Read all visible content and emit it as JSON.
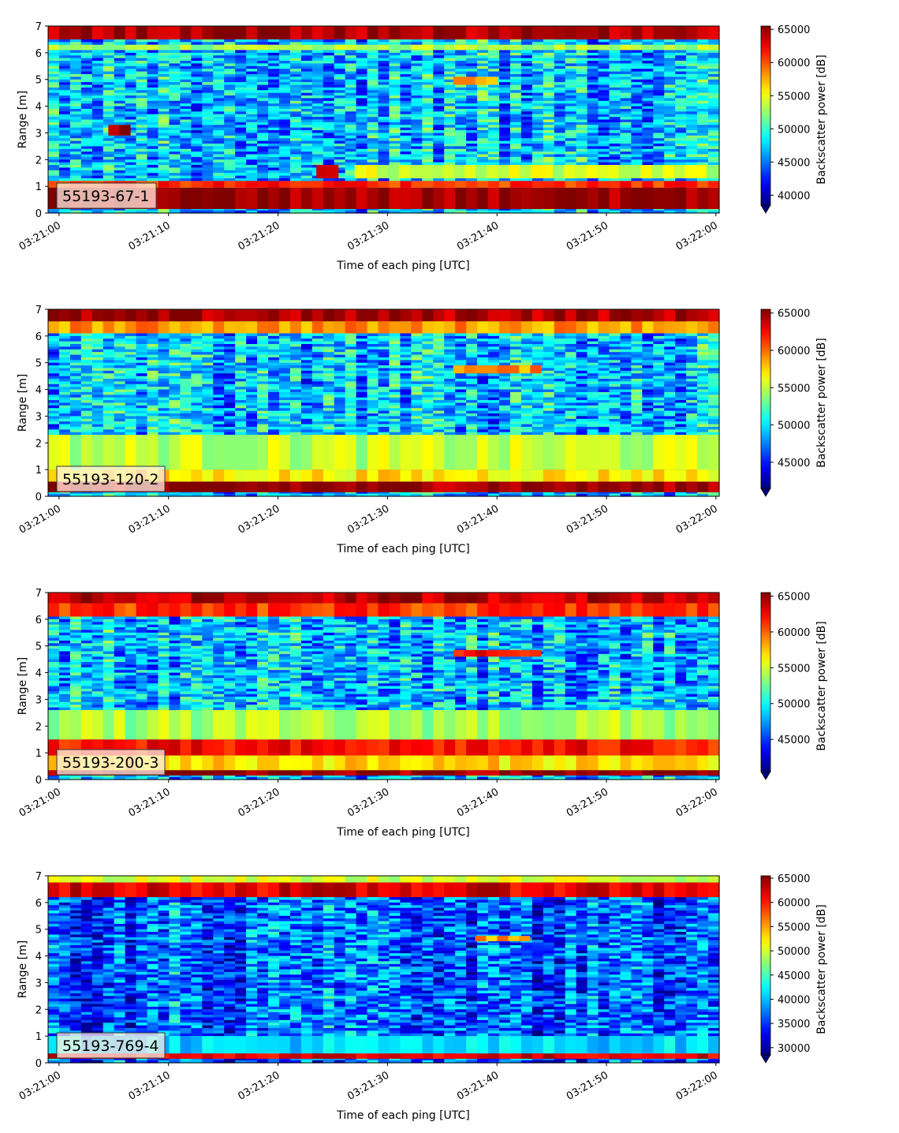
{
  "chart_data": [
    {
      "type": "heatmap",
      "label": "55193-67-1",
      "xlabel": "Time of each ping [UTC]",
      "ylabel": "Range [m]",
      "x_ticks": [
        "03:21:00",
        "03:21:10",
        "03:21:20",
        "03:21:30",
        "03:21:40",
        "03:21:50",
        "03:22:00"
      ],
      "xlim_seconds": [
        -1,
        60.3
      ],
      "ylim": [
        0,
        7
      ],
      "y_ticks": [
        0,
        1,
        2,
        3,
        4,
        5,
        6,
        7
      ],
      "colorbar": {
        "label": "Backscatter power [dB]",
        "min": 38500,
        "max": 65500,
        "ticks": [
          40000,
          45000,
          50000,
          55000,
          60000,
          65000
        ],
        "extend": "min"
      },
      "features": [
        {
          "t0": -1,
          "t1": 60.3,
          "r0": 0.15,
          "r1": 0.95,
          "value": 65000
        },
        {
          "t0": -1,
          "t1": 60.3,
          "r0": 0.95,
          "r1": 1.2,
          "value": 61000
        },
        {
          "t0": -1,
          "t1": 60.3,
          "r0": 6.1,
          "r1": 6.3,
          "value": 53000
        },
        {
          "t0": -1,
          "t1": 60.3,
          "r0": 6.5,
          "r1": 7.0,
          "value": 64500
        },
        {
          "t0": 4.5,
          "t1": 6.5,
          "r0": 2.9,
          "r1": 3.3,
          "value": 65000
        },
        {
          "t0": 23.5,
          "t1": 25.5,
          "r0": 1.3,
          "r1": 1.8,
          "value": 65000
        },
        {
          "t0": 36,
          "t1": 40,
          "r0": 4.8,
          "r1": 5.1,
          "value": 58000
        },
        {
          "t0": 27,
          "t1": 60.3,
          "r0": 1.3,
          "r1": 1.8,
          "value": 54000
        }
      ]
    },
    {
      "type": "heatmap",
      "label": "55193-120-2",
      "xlabel": "Time of each ping [UTC]",
      "ylabel": "Range [m]",
      "x_ticks": [
        "03:21:00",
        "03:21:10",
        "03:21:20",
        "03:21:30",
        "03:21:40",
        "03:21:50",
        "03:22:00"
      ],
      "xlim_seconds": [
        -1,
        60.3
      ],
      "ylim": [
        0,
        7
      ],
      "y_ticks": [
        0,
        1,
        2,
        3,
        4,
        5,
        6,
        7
      ],
      "colorbar": {
        "label": "Backscatter power [dB]",
        "min": 41500,
        "max": 65500,
        "ticks": [
          45000,
          50000,
          55000,
          60000,
          65000
        ],
        "extend": "min"
      },
      "features": [
        {
          "t0": -1,
          "t1": 60.3,
          "r0": 0.15,
          "r1": 0.55,
          "value": 65000
        },
        {
          "t0": -1,
          "t1": 60.3,
          "r0": 0.55,
          "r1": 1.0,
          "value": 57000
        },
        {
          "t0": -1,
          "t1": 60.3,
          "r0": 1.0,
          "r1": 2.3,
          "value": 55000
        },
        {
          "t0": -1,
          "t1": 60.3,
          "r0": 6.1,
          "r1": 6.55,
          "value": 59000
        },
        {
          "t0": -1,
          "t1": 60.3,
          "r0": 6.55,
          "r1": 7.0,
          "value": 64500
        },
        {
          "t0": 36,
          "t1": 44,
          "r0": 4.6,
          "r1": 4.9,
          "value": 59000
        }
      ]
    },
    {
      "type": "heatmap",
      "label": "55193-200-3",
      "xlabel": "Time of each ping [UTC]",
      "ylabel": "Range [m]",
      "x_ticks": [
        "03:21:00",
        "03:21:10",
        "03:21:20",
        "03:21:30",
        "03:21:40",
        "03:21:50",
        "03:22:00"
      ],
      "xlim_seconds": [
        -1,
        60.3
      ],
      "ylim": [
        0,
        7
      ],
      "y_ticks": [
        0,
        1,
        2,
        3,
        4,
        5,
        6,
        7
      ],
      "colorbar": {
        "label": "Backscatter power [dB]",
        "min": 40500,
        "max": 65500,
        "ticks": [
          45000,
          50000,
          55000,
          60000,
          65000
        ],
        "extend": "min"
      },
      "features": [
        {
          "t0": -1,
          "t1": 60.3,
          "r0": 0.15,
          "r1": 0.35,
          "value": 65000
        },
        {
          "t0": -1,
          "t1": 60.3,
          "r0": 0.35,
          "r1": 0.9,
          "value": 57000
        },
        {
          "t0": -1,
          "t1": 60.3,
          "r0": 0.9,
          "r1": 1.5,
          "value": 62000
        },
        {
          "t0": -1,
          "t1": 60.3,
          "r0": 1.5,
          "r1": 2.6,
          "value": 54000
        },
        {
          "t0": -1,
          "t1": 60.3,
          "r0": 6.1,
          "r1": 6.6,
          "value": 61000
        },
        {
          "t0": -1,
          "t1": 60.3,
          "r0": 6.6,
          "r1": 7.0,
          "value": 64000
        },
        {
          "t0": 36,
          "t1": 44,
          "r0": 4.6,
          "r1": 4.85,
          "value": 62000
        }
      ]
    },
    {
      "type": "heatmap",
      "label": "55193-769-4",
      "xlabel": "Time of each ping [UTC]",
      "ylabel": "Range [m]",
      "x_ticks": [
        "03:21:00",
        "03:21:10",
        "03:21:20",
        "03:21:30",
        "03:21:40",
        "03:21:50",
        "03:22:00"
      ],
      "xlim_seconds": [
        -1,
        60.3
      ],
      "ylim": [
        0,
        7
      ],
      "y_ticks": [
        0,
        1,
        2,
        3,
        4,
        5,
        6,
        7
      ],
      "colorbar": {
        "label": "Backscatter power [dB]",
        "min": 28500,
        "max": 65500,
        "ticks": [
          30000,
          35000,
          40000,
          45000,
          50000,
          55000,
          60000,
          65000
        ],
        "extend": "min"
      },
      "features": [
        {
          "t0": -1,
          "t1": 60.3,
          "r0": 0.15,
          "r1": 0.35,
          "value": 62000
        },
        {
          "t0": -1,
          "t1": 60.3,
          "r0": 0.35,
          "r1": 1.0,
          "value": 41000
        },
        {
          "t0": -1,
          "t1": 60.3,
          "r0": 6.2,
          "r1": 6.75,
          "value": 62000
        },
        {
          "t0": -1,
          "t1": 60.3,
          "r0": 6.75,
          "r1": 7.0,
          "value": 50000
        },
        {
          "t0": 38,
          "t1": 43,
          "r0": 4.55,
          "r1": 4.75,
          "value": 55000
        }
      ]
    }
  ]
}
